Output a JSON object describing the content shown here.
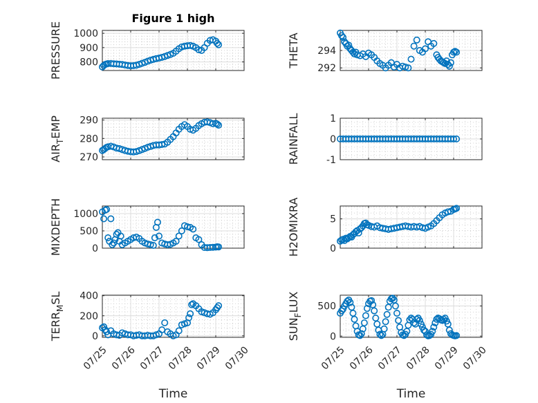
{
  "figure": {
    "title": "Figure 1 high",
    "marker_color": "#0072BD"
  },
  "chart_data": [
    {
      "type": "scatter",
      "name": "pressure",
      "ylabel": "PRESSURE",
      "ylabel_sub": "",
      "ylabel_after": "",
      "ylim": [
        740,
        1020
      ],
      "yticks": [
        800,
        900,
        1000
      ],
      "ytick_labels": [
        "800",
        "900",
        "1000"
      ],
      "xlim": [
        0,
        5
      ],
      "xticks": [
        0,
        1,
        2,
        3,
        4,
        5
      ],
      "xtick_labels": [],
      "title": "Figure 1 high",
      "x": [
        0,
        0.05,
        0.1,
        0.15,
        0.2,
        0.3,
        0.4,
        0.5,
        0.6,
        0.7,
        0.8,
        0.9,
        1.0,
        1.1,
        1.2,
        1.3,
        1.4,
        1.5,
        1.6,
        1.7,
        1.8,
        1.9,
        2.0,
        2.1,
        2.2,
        2.3,
        2.4,
        2.5,
        2.6,
        2.7,
        2.8,
        2.9,
        3.0,
        3.1,
        3.2,
        3.3,
        3.4,
        3.5,
        3.6,
        3.7,
        3.8,
        3.9,
        4.0,
        4.05,
        4.1
      ],
      "y": [
        765,
        775,
        782,
        786,
        788,
        789,
        787,
        786,
        784,
        782,
        778,
        775,
        773,
        774,
        777,
        783,
        790,
        797,
        805,
        812,
        818,
        823,
        827,
        832,
        838,
        845,
        852,
        860,
        875,
        892,
        905,
        910,
        913,
        915,
        910,
        900,
        885,
        880,
        900,
        930,
        950,
        955,
        945,
        930,
        920
      ]
    },
    {
      "type": "scatter",
      "name": "theta",
      "ylabel": "THETA",
      "ylabel_sub": "",
      "ylabel_after": "",
      "ylim": [
        291.7,
        296.3
      ],
      "yticks": [
        292,
        294
      ],
      "ytick_labels": [
        "292",
        "294"
      ],
      "xlim": [
        0,
        5
      ],
      "xticks": [
        0,
        1,
        2,
        3,
        4,
        5
      ],
      "xtick_labels": [],
      "x": [
        0,
        0.05,
        0.1,
        0.15,
        0.2,
        0.25,
        0.3,
        0.35,
        0.4,
        0.45,
        0.5,
        0.55,
        0.6,
        0.7,
        0.8,
        0.9,
        1.0,
        1.1,
        1.2,
        1.3,
        1.4,
        1.5,
        1.6,
        1.7,
        1.8,
        1.9,
        2.0,
        2.1,
        2.2,
        2.3,
        2.4,
        2.5,
        2.6,
        2.7,
        2.8,
        2.9,
        3.0,
        3.1,
        3.2,
        3.3,
        3.4,
        3.45,
        3.5,
        3.55,
        3.6,
        3.65,
        3.7,
        3.75,
        3.8,
        3.85,
        3.9,
        3.95,
        4.0,
        4.05,
        4.1
      ],
      "y": [
        296,
        295.7,
        295.5,
        295,
        294.8,
        294.5,
        294.6,
        294.2,
        294,
        293.8,
        293.6,
        293.8,
        293.5,
        293.4,
        293.6,
        293.3,
        293.7,
        293.5,
        293.2,
        292.8,
        292.5,
        292.3,
        292,
        292.3,
        292.6,
        292.1,
        292.4,
        292.0,
        292.2,
        292.1,
        292,
        293,
        294.5,
        295.2,
        294,
        293.8,
        294.2,
        295,
        294.5,
        294.8,
        293.5,
        293.2,
        293,
        292.8,
        292.7,
        292.6,
        292.5,
        292.8,
        292.4,
        292.2,
        292.6,
        293.5,
        293.8,
        293.9,
        293.8
      ]
    },
    {
      "type": "scatter",
      "name": "air-temp",
      "ylabel": "AIR",
      "ylabel_sub": "T",
      "ylabel_after": "EMP",
      "ylim": [
        268.5,
        291
      ],
      "yticks": [
        270,
        280,
        290
      ],
      "ytick_labels": [
        "270",
        "280",
        "290"
      ],
      "xlim": [
        0,
        5
      ],
      "xticks": [
        0,
        1,
        2,
        3,
        4,
        5
      ],
      "xtick_labels": [],
      "x": [
        0,
        0.05,
        0.1,
        0.15,
        0.2,
        0.3,
        0.4,
        0.5,
        0.6,
        0.7,
        0.8,
        0.9,
        1.0,
        1.1,
        1.2,
        1.3,
        1.4,
        1.5,
        1.6,
        1.7,
        1.8,
        1.9,
        2.0,
        2.1,
        2.2,
        2.3,
        2.4,
        2.5,
        2.6,
        2.7,
        2.8,
        2.9,
        3.0,
        3.1,
        3.2,
        3.3,
        3.4,
        3.5,
        3.6,
        3.7,
        3.8,
        3.9,
        4.0,
        4.05,
        4.1
      ],
      "y": [
        273.5,
        274,
        274.6,
        275.2,
        275.5,
        275.8,
        275.4,
        274.8,
        274.5,
        274,
        273.5,
        273.1,
        272.8,
        272.7,
        272.9,
        273.4,
        274,
        274.6,
        275.2,
        275.7,
        276.2,
        276.5,
        276.5,
        276.7,
        277,
        278,
        279.5,
        281,
        283,
        285,
        286.5,
        287.5,
        286.5,
        285,
        284.5,
        285.5,
        287,
        288,
        288.8,
        289,
        288.6,
        288,
        288.2,
        287.8,
        287.2
      ]
    },
    {
      "type": "scatter",
      "name": "rainfall",
      "ylabel": "RAINFALL",
      "ylabel_sub": "",
      "ylabel_after": "",
      "ylim": [
        -1,
        1
      ],
      "yticks": [
        -1,
        0,
        1
      ],
      "ytick_labels": [
        "-1",
        "0",
        "1"
      ],
      "xlim": [
        0,
        5
      ],
      "xticks": [
        0,
        1,
        2,
        3,
        4,
        5
      ],
      "xtick_labels": [],
      "x": [
        0,
        0.1,
        0.2,
        0.3,
        0.4,
        0.5,
        0.6,
        0.7,
        0.8,
        0.9,
        1.0,
        1.1,
        1.2,
        1.3,
        1.4,
        1.5,
        1.6,
        1.7,
        1.8,
        1.9,
        2.0,
        2.1,
        2.2,
        2.3,
        2.4,
        2.5,
        2.6,
        2.7,
        2.8,
        2.9,
        3.0,
        3.1,
        3.2,
        3.3,
        3.4,
        3.5,
        3.6,
        3.7,
        3.8,
        3.9,
        4.0,
        4.1
      ],
      "y": [
        0,
        0,
        0,
        0,
        0,
        0,
        0,
        0,
        0,
        0,
        0,
        0,
        0,
        0,
        0,
        0,
        0,
        0,
        0,
        0,
        0,
        0,
        0,
        0,
        0,
        0,
        0,
        0,
        0,
        0,
        0,
        0,
        0,
        0,
        0,
        0,
        0,
        0,
        0,
        0,
        0,
        0
      ]
    },
    {
      "type": "scatter",
      "name": "mixdepth",
      "ylabel": "MIXDEPTH",
      "ylabel_sub": "",
      "ylabel_after": "",
      "ylim": [
        0,
        1220
      ],
      "yticks": [
        0,
        500,
        1000
      ],
      "ytick_labels": [
        "0",
        "500",
        "1000"
      ],
      "xlim": [
        0,
        5
      ],
      "xticks": [
        0,
        1,
        2,
        3,
        4,
        5
      ],
      "xtick_labels": [],
      "x": [
        0,
        0.05,
        0.1,
        0.15,
        0.2,
        0.25,
        0.3,
        0.35,
        0.4,
        0.45,
        0.5,
        0.55,
        0.6,
        0.65,
        0.7,
        0.8,
        0.9,
        1.0,
        1.1,
        1.2,
        1.3,
        1.4,
        1.5,
        1.6,
        1.7,
        1.8,
        1.85,
        1.9,
        1.95,
        2.0,
        2.1,
        2.2,
        2.3,
        2.4,
        2.5,
        2.6,
        2.7,
        2.8,
        2.9,
        3.0,
        3.1,
        3.2,
        3.3,
        3.4,
        3.5,
        3.6,
        3.7,
        3.8,
        3.9,
        4.0,
        4.05,
        4.1
      ],
      "y": [
        1050,
        850,
        1100,
        1120,
        300,
        200,
        850,
        100,
        150,
        250,
        400,
        450,
        200,
        350,
        100,
        150,
        200,
        250,
        300,
        320,
        280,
        200,
        150,
        120,
        100,
        80,
        300,
        600,
        750,
        350,
        150,
        120,
        100,
        110,
        150,
        200,
        350,
        500,
        650,
        620,
        600,
        550,
        300,
        250,
        100,
        20,
        15,
        20,
        25,
        30,
        40,
        35
      ]
    },
    {
      "type": "scatter",
      "name": "h2omixra",
      "ylabel": "H2OMIXRA",
      "ylabel_sub": "",
      "ylabel_after": "",
      "ylim": [
        0,
        7.2
      ],
      "yticks": [
        0,
        5
      ],
      "ytick_labels": [
        "0",
        "5"
      ],
      "xlim": [
        0,
        5
      ],
      "xticks": [
        0,
        1,
        2,
        3,
        4,
        5
      ],
      "xtick_labels": [],
      "x": [
        0,
        0.05,
        0.1,
        0.15,
        0.2,
        0.25,
        0.3,
        0.35,
        0.4,
        0.45,
        0.5,
        0.55,
        0.6,
        0.65,
        0.7,
        0.75,
        0.8,
        0.85,
        0.9,
        0.95,
        1.0,
        1.1,
        1.2,
        1.3,
        1.4,
        1.5,
        1.6,
        1.7,
        1.8,
        1.9,
        2.0,
        2.1,
        2.2,
        2.3,
        2.4,
        2.5,
        2.6,
        2.7,
        2.8,
        2.9,
        3.0,
        3.1,
        3.2,
        3.3,
        3.4,
        3.5,
        3.6,
        3.7,
        3.8,
        3.9,
        4.0,
        4.05,
        4.1
      ],
      "y": [
        1.2,
        1.4,
        1.5,
        1.3,
        1.7,
        1.6,
        1.8,
        2.0,
        1.9,
        2.3,
        2.5,
        2.8,
        3.0,
        2.6,
        3.3,
        3.5,
        3.8,
        4.2,
        4.3,
        4.0,
        3.9,
        3.7,
        3.6,
        3.8,
        3.5,
        3.4,
        3.3,
        3.2,
        3.3,
        3.4,
        3.5,
        3.6,
        3.7,
        3.8,
        3.7,
        3.6,
        3.7,
        3.6,
        3.7,
        3.5,
        3.4,
        3.6,
        3.8,
        4.2,
        4.7,
        5.2,
        5.7,
        6.0,
        6.2,
        6.3,
        6.6,
        6.7,
        6.8
      ]
    },
    {
      "type": "scatter",
      "name": "terr-msl",
      "ylabel": "TERR",
      "ylabel_sub": "M",
      "ylabel_after": "SL",
      "ylim": [
        -15,
        405
      ],
      "yticks": [
        0,
        200,
        400
      ],
      "ytick_labels": [
        "0",
        "200",
        "400"
      ],
      "xlim": [
        0,
        5
      ],
      "xticks": [
        0,
        1,
        2,
        3,
        4,
        5
      ],
      "xtick_labels": [
        "07/25",
        "07/26",
        "07/27",
        "07/28",
        "07/29",
        "07/30"
      ],
      "xlabel": "Time",
      "x": [
        0,
        0.05,
        0.1,
        0.15,
        0.2,
        0.3,
        0.4,
        0.5,
        0.6,
        0.7,
        0.8,
        0.9,
        1.0,
        1.1,
        1.2,
        1.3,
        1.4,
        1.5,
        1.6,
        1.7,
        1.8,
        1.9,
        2.0,
        2.1,
        2.2,
        2.3,
        2.4,
        2.5,
        2.6,
        2.7,
        2.8,
        2.9,
        3.0,
        3.05,
        3.1,
        3.15,
        3.2,
        3.3,
        3.4,
        3.5,
        3.6,
        3.7,
        3.8,
        3.9,
        4.0,
        4.05,
        4.1
      ],
      "y": [
        80,
        90,
        60,
        40,
        10,
        50,
        20,
        10,
        5,
        30,
        20,
        10,
        10,
        0,
        5,
        10,
        0,
        0,
        5,
        0,
        0,
        10,
        20,
        60,
        130,
        40,
        20,
        0,
        10,
        50,
        110,
        120,
        130,
        180,
        220,
        310,
        320,
        300,
        270,
        240,
        230,
        220,
        215,
        230,
        260,
        280,
        300
      ]
    },
    {
      "type": "scatter",
      "name": "sun-flux",
      "ylabel": "SUN",
      "ylabel_sub": "F",
      "ylabel_after": "LUX",
      "ylim": [
        -20,
        680
      ],
      "yticks": [
        0,
        500
      ],
      "ytick_labels": [
        "0",
        "500"
      ],
      "xlim": [
        0,
        5
      ],
      "xticks": [
        0,
        1,
        2,
        3,
        4,
        5
      ],
      "xtick_labels": [
        "07/25",
        "07/26",
        "07/27",
        "07/28",
        "07/29",
        "07/30"
      ],
      "xlabel": "Time",
      "x": [
        0,
        0.05,
        0.1,
        0.15,
        0.2,
        0.25,
        0.3,
        0.35,
        0.4,
        0.45,
        0.5,
        0.55,
        0.6,
        0.65,
        0.7,
        0.75,
        0.8,
        0.85,
        0.9,
        0.95,
        1.0,
        1.05,
        1.1,
        1.15,
        1.2,
        1.25,
        1.3,
        1.35,
        1.4,
        1.45,
        1.5,
        1.55,
        1.6,
        1.65,
        1.7,
        1.75,
        1.8,
        1.85,
        1.9,
        1.95,
        2.0,
        2.05,
        2.1,
        2.15,
        2.2,
        2.25,
        2.3,
        2.35,
        2.4,
        2.45,
        2.5,
        2.55,
        2.6,
        2.65,
        2.7,
        2.75,
        2.8,
        2.85,
        2.9,
        2.95,
        3.0,
        3.05,
        3.1,
        3.15,
        3.2,
        3.25,
        3.3,
        3.35,
        3.4,
        3.45,
        3.5,
        3.55,
        3.6,
        3.65,
        3.7,
        3.75,
        3.8,
        3.85,
        3.9,
        3.95,
        4.0,
        4.05,
        4.1
      ],
      "y": [
        380,
        420,
        450,
        500,
        540,
        580,
        600,
        560,
        480,
        380,
        280,
        170,
        80,
        20,
        10,
        40,
        120,
        220,
        340,
        460,
        540,
        580,
        590,
        520,
        420,
        300,
        200,
        100,
        30,
        10,
        30,
        120,
        240,
        360,
        480,
        580,
        620,
        630,
        600,
        500,
        380,
        260,
        150,
        60,
        20,
        10,
        30,
        80,
        180,
        270,
        300,
        280,
        220,
        200,
        280,
        300,
        260,
        200,
        150,
        100,
        80,
        20,
        5,
        10,
        30,
        80,
        150,
        220,
        280,
        300,
        290,
        270,
        260,
        280,
        300,
        250,
        200,
        100,
        40,
        20,
        10,
        5,
        10
      ]
    }
  ]
}
